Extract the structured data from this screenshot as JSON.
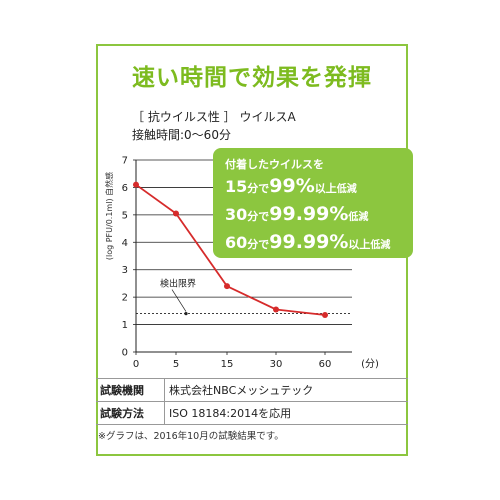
{
  "headline": "速い時間で効果を発揮",
  "subtitle_line1": "［ 抗ウイルス性 ］ ウイルスA",
  "subtitle_line2": "接触時間:0〜60分",
  "callout": {
    "intro": "付着したウイルスを",
    "lines": [
      {
        "time": "15",
        "min": "分で",
        "pct": "99%",
        "above": "以上",
        "reduce": "低減"
      },
      {
        "time": "30",
        "min": "分で",
        "pct": "99.99%",
        "above": "",
        "reduce": "低減"
      },
      {
        "time": "60",
        "min": "分で",
        "pct": "99.99%",
        "above": "以上",
        "reduce": "低減"
      }
    ]
  },
  "detection_label": "検出限界",
  "x_unit": "(分)",
  "table": [
    {
      "key": "試験機関",
      "value": "株式会社NBCメッシュテック"
    },
    {
      "key": "試験方法",
      "value": "ISO 18184:2014を応用"
    }
  ],
  "note": "※グラフは、2016年10月の試験結果です。",
  "colors": {
    "accent": "#8cc63f",
    "headline": "#7dbb1f",
    "series": "#d62b2b"
  },
  "chart_data": {
    "type": "line",
    "ylabel": "(log PFU/0.1ml) 自然感",
    "categories": [
      "0",
      "5",
      "15",
      "30",
      "60"
    ],
    "values": [
      6.1,
      5.05,
      2.4,
      1.55,
      1.35
    ],
    "ylim": [
      0,
      7
    ],
    "yticks": [
      "0",
      "1",
      "2",
      "3",
      "4",
      "5",
      "6",
      "7"
    ],
    "detection_limit": 1.4,
    "grid": "horizontal"
  }
}
